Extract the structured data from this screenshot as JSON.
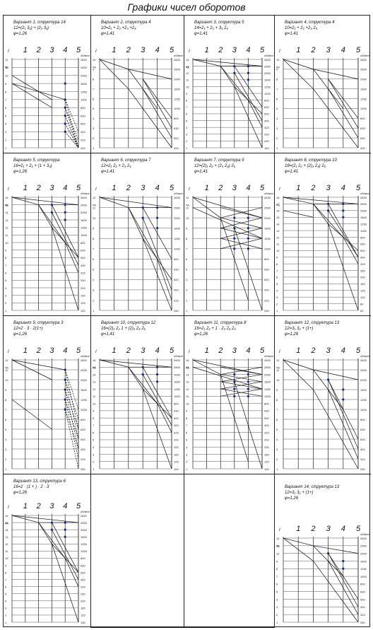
{
  "title": "Графики чисел оборотов",
  "panels": [
    {
      "id": "v1",
      "caption": [
        "Вариант 1, структура 14",
        "12=(2₁ 3₂) + (2₂ 3₁)",
        "φ=1,26"
      ],
      "n": 12,
      "top": [
        7,
        9
      ],
      "levels": 5,
      "pattern": "dual",
      "dashed": true
    },
    {
      "id": "v2",
      "caption": [
        "Вариант 2, структура 4",
        "10=2₁ + 2₂ +2₃ +2₄",
        "φ=1,41"
      ],
      "n": 10,
      "top": [
        10
      ],
      "levels": 5,
      "pattern": "fan",
      "dashed": false
    },
    {
      "id": "v3",
      "caption": [
        "Вариант 3, структура 5",
        "14=2₁ + 2₂ + 3₃ 2₄",
        "φ=1,41"
      ],
      "n": 14,
      "top": [
        14
      ],
      "levels": 5,
      "pattern": "tree",
      "dashed": false
    },
    {
      "id": "v4",
      "caption": [
        "Вариант 4, структура 4",
        "10=2₁ + 2₂ +2₃ 2₄",
        "φ=1,41"
      ],
      "n": 10,
      "top": [
        10
      ],
      "levels": 5,
      "pattern": "fan",
      "dashed": false
    },
    {
      "id": "v5",
      "caption": [
        "Вариант 5, структура",
        "16=2₁ + 2₂ + (1 + 3₃)",
        "φ=1,26"
      ],
      "n": 16,
      "top": [
        16
      ],
      "levels": 5,
      "pattern": "tree",
      "dashed": false
    },
    {
      "id": "v6",
      "caption": [
        "Вариант 6, структура 7",
        "12=2₁ 2₂ + 2₃ 2₄",
        "φ=1,41"
      ],
      "n": 12,
      "top": [
        12
      ],
      "levels": 5,
      "pattern": "tree",
      "dashed": false
    },
    {
      "id": "v7",
      "caption": [
        "Вариант 7, структура 9",
        "12=(2)₁ 2₂ + (2₃ 2₄) 2₅",
        "φ=1,41"
      ],
      "n": 12,
      "top": [
        12,
        11
      ],
      "levels": 5,
      "pattern": "cross",
      "dashed": false
    },
    {
      "id": "v8",
      "caption": [
        "Вариант 8, структура 10",
        "18=(2₁ 2₂ + (2)₃ 2₄) 2₅",
        "φ=1,41"
      ],
      "n": 18,
      "top": [
        18,
        16
      ],
      "levels": 5,
      "pattern": "tree",
      "dashed": false
    },
    {
      "id": "v9",
      "caption": [
        "Вариант 9, структура 3",
        "12=2 · 3 · 2(1+)",
        "φ=1,26"
      ],
      "n": 12,
      "top": [
        11,
        7
      ],
      "levels": 5,
      "pattern": "dual",
      "dashed": true
    },
    {
      "id": "v10",
      "caption": [
        "Вариант 10, структура 12",
        "16=(2)₁ 2₂ 1 + (2)₃ 2₄ 2₅",
        "φ=1,41"
      ],
      "n": 16,
      "top": [
        16
      ],
      "levels": 5,
      "pattern": "tree",
      "dashed": false
    },
    {
      "id": "v11",
      "caption": [
        "Вариант 11, структура 8",
        "16=2₁ 2₂ + 1 · 2₃ 2₄ 2₅",
        "φ=1,26"
      ],
      "n": 16,
      "top": [
        16
      ],
      "levels": 5,
      "pattern": "cross",
      "dashed": false
    },
    {
      "id": "v12",
      "caption": [
        "Вариант 12, структура 13",
        "12=3₁ 3₂ + (1+)",
        "φ=1,26"
      ],
      "n": 12,
      "top": [
        12
      ],
      "levels": 5,
      "pattern": "fan",
      "dashed": false
    },
    {
      "id": "v13",
      "caption": [
        "Вариант 13, структура 6",
        "16=2 · (1 + ) · 2 · 3",
        "φ=1,26"
      ],
      "n": 16,
      "top": [
        16
      ],
      "levels": 5,
      "pattern": "tree",
      "dashed": false
    },
    {
      "id": "v14",
      "caption": [
        "Вариант 14, структура 13",
        "12=3₁ 3₂ + (1+)",
        "φ=1,26"
      ],
      "n": 12,
      "top": [
        12
      ],
      "levels": 5,
      "pattern": "fan",
      "dashed": false
    }
  ],
  "shaft_labels": [
    "I",
    "1",
    "2",
    "3",
    "4",
    "5"
  ],
  "speed_scale": [
    "2820",
    "2500",
    "2000",
    "1600",
    "1250",
    "1000",
    "800",
    "630",
    "500",
    "400",
    "315",
    "250",
    "200",
    "160",
    "125",
    "100",
    "80",
    "63",
    "50"
  ],
  "axis_marks": [
    "nд",
    "nдв",
    "об/мин"
  ]
}
